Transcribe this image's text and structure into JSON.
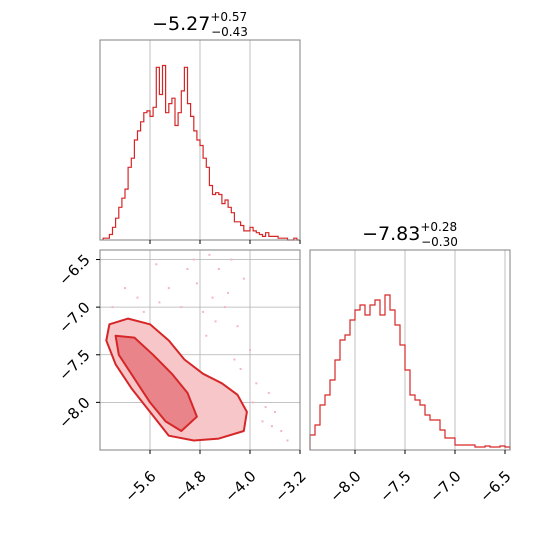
{
  "figure": {
    "type": "corner-plot"
  },
  "colors": {
    "series": "#d62728",
    "contour_fill_outer": "#f6c6c9",
    "contour_fill_inner": "#e9848b",
    "scatter": "#f3b7bf",
    "grid": "#b0b0b0",
    "axis": "#808080"
  },
  "chart_data": [
    {
      "id": "hist-param1",
      "type": "histogram",
      "title": {
        "main": "−5.27",
        "sup": "+0.57",
        "sub": "−0.43"
      },
      "xlim": [
        -6.4,
        -3.2
      ],
      "ylim": [
        0,
        110
      ],
      "grid": true,
      "xticks_values": [
        -5.6,
        -4.8,
        -4.0,
        -3.2
      ],
      "bin_edges": [
        -6.35,
        -6.3,
        -6.25,
        -6.2,
        -6.15,
        -6.1,
        -6.05,
        -6.0,
        -5.95,
        -5.9,
        -5.85,
        -5.8,
        -5.75,
        -5.7,
        -5.65,
        -5.6,
        -5.55,
        -5.5,
        -5.45,
        -5.4,
        -5.35,
        -5.3,
        -5.25,
        -5.2,
        -5.15,
        -5.1,
        -5.05,
        -5.0,
        -4.95,
        -4.9,
        -4.85,
        -4.8,
        -4.75,
        -4.7,
        -4.65,
        -4.6,
        -4.55,
        -4.5,
        -4.45,
        -4.4,
        -4.35,
        -4.3,
        -4.25,
        -4.2,
        -4.15,
        -4.1,
        -4.05,
        -4.0,
        -3.95,
        -3.9,
        -3.85,
        -3.8,
        -3.75,
        -3.7,
        -3.65,
        -3.6,
        -3.55,
        -3.5,
        -3.45,
        -3.4,
        -3.35,
        -3.3,
        -3.25,
        -3.2
      ],
      "counts": [
        1,
        1,
        3,
        7,
        12,
        18,
        23,
        28,
        40,
        45,
        55,
        60,
        65,
        70,
        71,
        68,
        73,
        95,
        80,
        96,
        70,
        75,
        78,
        63,
        70,
        82,
        95,
        75,
        68,
        60,
        55,
        52,
        45,
        40,
        30,
        25,
        26,
        25,
        20,
        22,
        18,
        15,
        10,
        10,
        8,
        5,
        5,
        7,
        5,
        4,
        3,
        2,
        4,
        2,
        2,
        2,
        1,
        1,
        1,
        0,
        0,
        1,
        0
      ]
    },
    {
      "id": "hist-param2",
      "type": "histogram",
      "title": {
        "main": "−7.83",
        "sup": "+0.28",
        "sub": "−0.30"
      },
      "xlim": [
        -8.45,
        -6.45
      ],
      "ylim": [
        0,
        200
      ],
      "grid": true,
      "xticks_values": [
        -8.0,
        -7.5,
        -7.0,
        -6.5
      ],
      "bin_edges": [
        -8.45,
        -8.4,
        -8.35,
        -8.3,
        -8.25,
        -8.2,
        -8.15,
        -8.1,
        -8.05,
        -8.0,
        -7.95,
        -7.9,
        -7.85,
        -7.8,
        -7.75,
        -7.7,
        -7.65,
        -7.6,
        -7.55,
        -7.5,
        -7.45,
        -7.4,
        -7.35,
        -7.3,
        -7.25,
        -7.2,
        -7.15,
        -7.1,
        -7.05,
        -7.0,
        -6.95,
        -6.9,
        -6.85,
        -6.8,
        -6.75,
        -6.7,
        -6.65,
        -6.6,
        -6.55,
        -6.5,
        -6.45
      ],
      "counts": [
        15,
        25,
        45,
        55,
        70,
        90,
        110,
        115,
        130,
        140,
        145,
        135,
        145,
        150,
        135,
        155,
        140,
        125,
        105,
        80,
        55,
        50,
        45,
        35,
        30,
        30,
        20,
        12,
        12,
        5,
        5,
        5,
        5,
        3,
        3,
        4,
        3,
        3,
        4,
        3
      ]
    },
    {
      "id": "joint",
      "type": "contour",
      "xlim": [
        -6.4,
        -3.2
      ],
      "ylim": [
        -8.5,
        -6.4
      ],
      "grid": true,
      "xticks_values": [
        -5.6,
        -4.8,
        -4.0,
        -3.2
      ],
      "yticks_values": [
        -6.5,
        -7.0,
        -7.5,
        -8.0
      ],
      "contour_outer": [
        [
          -6.25,
          -7.18
        ],
        [
          -5.95,
          -7.12
        ],
        [
          -5.6,
          -7.18
        ],
        [
          -5.3,
          -7.35
        ],
        [
          -5.05,
          -7.55
        ],
        [
          -4.75,
          -7.7
        ],
        [
          -4.45,
          -7.8
        ],
        [
          -4.2,
          -7.92
        ],
        [
          -4.05,
          -8.1
        ],
        [
          -4.1,
          -8.3
        ],
        [
          -4.5,
          -8.38
        ],
        [
          -4.9,
          -8.4
        ],
        [
          -5.3,
          -8.35
        ],
        [
          -5.6,
          -8.1
        ],
        [
          -5.9,
          -7.85
        ],
        [
          -6.15,
          -7.6
        ],
        [
          -6.3,
          -7.35
        ]
      ],
      "contour_inner": [
        [
          -6.15,
          -7.3
        ],
        [
          -5.85,
          -7.32
        ],
        [
          -5.55,
          -7.5
        ],
        [
          -5.25,
          -7.7
        ],
        [
          -5.0,
          -7.9
        ],
        [
          -4.85,
          -8.15
        ],
        [
          -5.1,
          -8.3
        ],
        [
          -5.35,
          -8.2
        ],
        [
          -5.6,
          -8.0
        ],
        [
          -5.85,
          -7.75
        ],
        [
          -6.1,
          -7.5
        ]
      ],
      "scatter": [
        [
          -4.3,
          -6.5
        ],
        [
          -4.5,
          -6.6
        ],
        [
          -4.1,
          -6.7
        ],
        [
          -4.6,
          -6.9
        ],
        [
          -4.4,
          -7.0
        ],
        [
          -4.2,
          -7.2
        ],
        [
          -4.7,
          -7.3
        ],
        [
          -4.0,
          -7.45
        ],
        [
          -3.9,
          -7.8
        ],
        [
          -3.7,
          -7.9
        ],
        [
          -3.6,
          -8.1
        ],
        [
          -3.8,
          -8.2
        ],
        [
          -3.5,
          -8.3
        ],
        [
          -3.4,
          -8.4
        ],
        [
          -5.0,
          -6.6
        ],
        [
          -4.9,
          -6.5
        ],
        [
          -5.3,
          -6.8
        ],
        [
          -5.1,
          -7.0
        ],
        [
          -5.8,
          -6.9
        ],
        [
          -6.0,
          -6.8
        ],
        [
          -5.5,
          -6.55
        ],
        [
          -4.85,
          -6.75
        ],
        [
          -4.75,
          -7.05
        ],
        [
          -4.55,
          -7.15
        ],
        [
          -4.25,
          -7.55
        ],
        [
          -4.15,
          -7.65
        ],
        [
          -3.95,
          -8.0
        ],
        [
          -3.75,
          -8.05
        ],
        [
          -5.7,
          -7.05
        ],
        [
          -6.2,
          -7.0
        ],
        [
          -4.35,
          -6.85
        ],
        [
          -4.65,
          -6.45
        ],
        [
          -5.45,
          -6.95
        ],
        [
          -3.65,
          -8.25
        ]
      ]
    }
  ]
}
